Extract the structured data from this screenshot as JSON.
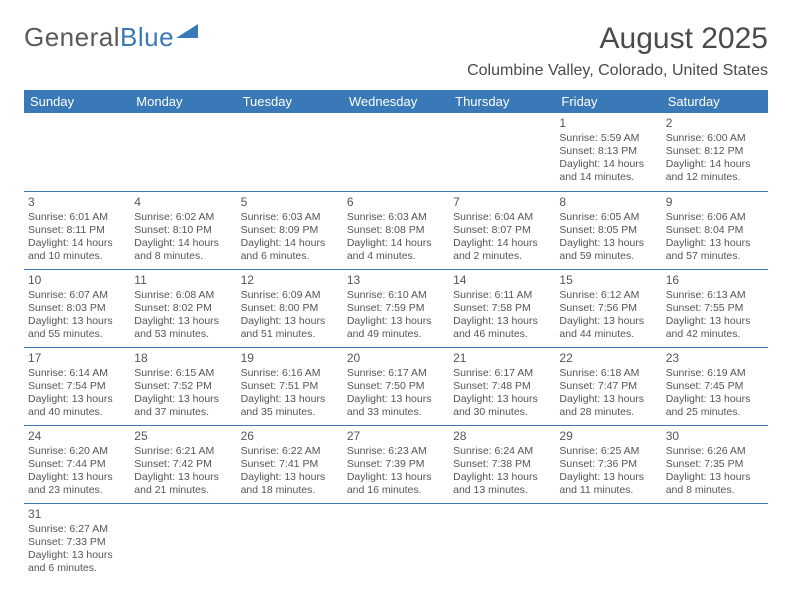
{
  "logo": {
    "part1": "General",
    "part2": "Blue"
  },
  "title": "August 2025",
  "subtitle": "Columbine Valley, Colorado, United States",
  "headers": [
    "Sunday",
    "Monday",
    "Tuesday",
    "Wednesday",
    "Thursday",
    "Friday",
    "Saturday"
  ],
  "colors": {
    "accent": "#3a79b7",
    "text": "#4a4a4a",
    "background": "#ffffff"
  },
  "weeks": [
    [
      null,
      null,
      null,
      null,
      null,
      {
        "n": "1",
        "sr": "Sunrise: 5:59 AM",
        "ss": "Sunset: 8:13 PM",
        "dl": "Daylight: 14 hours and 14 minutes."
      },
      {
        "n": "2",
        "sr": "Sunrise: 6:00 AM",
        "ss": "Sunset: 8:12 PM",
        "dl": "Daylight: 14 hours and 12 minutes."
      }
    ],
    [
      {
        "n": "3",
        "sr": "Sunrise: 6:01 AM",
        "ss": "Sunset: 8:11 PM",
        "dl": "Daylight: 14 hours and 10 minutes."
      },
      {
        "n": "4",
        "sr": "Sunrise: 6:02 AM",
        "ss": "Sunset: 8:10 PM",
        "dl": "Daylight: 14 hours and 8 minutes."
      },
      {
        "n": "5",
        "sr": "Sunrise: 6:03 AM",
        "ss": "Sunset: 8:09 PM",
        "dl": "Daylight: 14 hours and 6 minutes."
      },
      {
        "n": "6",
        "sr": "Sunrise: 6:03 AM",
        "ss": "Sunset: 8:08 PM",
        "dl": "Daylight: 14 hours and 4 minutes."
      },
      {
        "n": "7",
        "sr": "Sunrise: 6:04 AM",
        "ss": "Sunset: 8:07 PM",
        "dl": "Daylight: 14 hours and 2 minutes."
      },
      {
        "n": "8",
        "sr": "Sunrise: 6:05 AM",
        "ss": "Sunset: 8:05 PM",
        "dl": "Daylight: 13 hours and 59 minutes."
      },
      {
        "n": "9",
        "sr": "Sunrise: 6:06 AM",
        "ss": "Sunset: 8:04 PM",
        "dl": "Daylight: 13 hours and 57 minutes."
      }
    ],
    [
      {
        "n": "10",
        "sr": "Sunrise: 6:07 AM",
        "ss": "Sunset: 8:03 PM",
        "dl": "Daylight: 13 hours and 55 minutes."
      },
      {
        "n": "11",
        "sr": "Sunrise: 6:08 AM",
        "ss": "Sunset: 8:02 PM",
        "dl": "Daylight: 13 hours and 53 minutes."
      },
      {
        "n": "12",
        "sr": "Sunrise: 6:09 AM",
        "ss": "Sunset: 8:00 PM",
        "dl": "Daylight: 13 hours and 51 minutes."
      },
      {
        "n": "13",
        "sr": "Sunrise: 6:10 AM",
        "ss": "Sunset: 7:59 PM",
        "dl": "Daylight: 13 hours and 49 minutes."
      },
      {
        "n": "14",
        "sr": "Sunrise: 6:11 AM",
        "ss": "Sunset: 7:58 PM",
        "dl": "Daylight: 13 hours and 46 minutes."
      },
      {
        "n": "15",
        "sr": "Sunrise: 6:12 AM",
        "ss": "Sunset: 7:56 PM",
        "dl": "Daylight: 13 hours and 44 minutes."
      },
      {
        "n": "16",
        "sr": "Sunrise: 6:13 AM",
        "ss": "Sunset: 7:55 PM",
        "dl": "Daylight: 13 hours and 42 minutes."
      }
    ],
    [
      {
        "n": "17",
        "sr": "Sunrise: 6:14 AM",
        "ss": "Sunset: 7:54 PM",
        "dl": "Daylight: 13 hours and 40 minutes."
      },
      {
        "n": "18",
        "sr": "Sunrise: 6:15 AM",
        "ss": "Sunset: 7:52 PM",
        "dl": "Daylight: 13 hours and 37 minutes."
      },
      {
        "n": "19",
        "sr": "Sunrise: 6:16 AM",
        "ss": "Sunset: 7:51 PM",
        "dl": "Daylight: 13 hours and 35 minutes."
      },
      {
        "n": "20",
        "sr": "Sunrise: 6:17 AM",
        "ss": "Sunset: 7:50 PM",
        "dl": "Daylight: 13 hours and 33 minutes."
      },
      {
        "n": "21",
        "sr": "Sunrise: 6:17 AM",
        "ss": "Sunset: 7:48 PM",
        "dl": "Daylight: 13 hours and 30 minutes."
      },
      {
        "n": "22",
        "sr": "Sunrise: 6:18 AM",
        "ss": "Sunset: 7:47 PM",
        "dl": "Daylight: 13 hours and 28 minutes."
      },
      {
        "n": "23",
        "sr": "Sunrise: 6:19 AM",
        "ss": "Sunset: 7:45 PM",
        "dl": "Daylight: 13 hours and 25 minutes."
      }
    ],
    [
      {
        "n": "24",
        "sr": "Sunrise: 6:20 AM",
        "ss": "Sunset: 7:44 PM",
        "dl": "Daylight: 13 hours and 23 minutes."
      },
      {
        "n": "25",
        "sr": "Sunrise: 6:21 AM",
        "ss": "Sunset: 7:42 PM",
        "dl": "Daylight: 13 hours and 21 minutes."
      },
      {
        "n": "26",
        "sr": "Sunrise: 6:22 AM",
        "ss": "Sunset: 7:41 PM",
        "dl": "Daylight: 13 hours and 18 minutes."
      },
      {
        "n": "27",
        "sr": "Sunrise: 6:23 AM",
        "ss": "Sunset: 7:39 PM",
        "dl": "Daylight: 13 hours and 16 minutes."
      },
      {
        "n": "28",
        "sr": "Sunrise: 6:24 AM",
        "ss": "Sunset: 7:38 PM",
        "dl": "Daylight: 13 hours and 13 minutes."
      },
      {
        "n": "29",
        "sr": "Sunrise: 6:25 AM",
        "ss": "Sunset: 7:36 PM",
        "dl": "Daylight: 13 hours and 11 minutes."
      },
      {
        "n": "30",
        "sr": "Sunrise: 6:26 AM",
        "ss": "Sunset: 7:35 PM",
        "dl": "Daylight: 13 hours and 8 minutes."
      }
    ],
    [
      {
        "n": "31",
        "sr": "Sunrise: 6:27 AM",
        "ss": "Sunset: 7:33 PM",
        "dl": "Daylight: 13 hours and 6 minutes."
      },
      null,
      null,
      null,
      null,
      null,
      null
    ]
  ]
}
